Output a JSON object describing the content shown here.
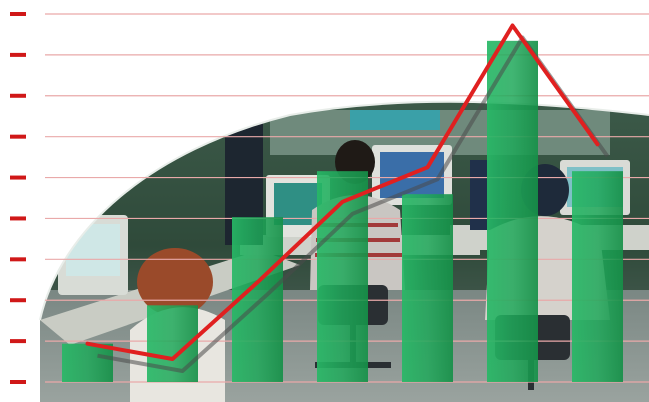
{
  "image": {
    "subject": "office-workers-at-computers-with-growth-chart-overlay",
    "colors": {
      "background": "#ffffff",
      "tick_mark": "#d01818",
      "gridline": "#e9a9a9",
      "bar_fill": "#1fa85a",
      "trend_line": "#e02020",
      "trend_shadow": "#4a4a4a",
      "photo_tone": "#2f4a3a"
    }
  },
  "chart_data": {
    "type": "bar",
    "categories": [
      "",
      "",
      "",
      "",
      "",
      "",
      ""
    ],
    "values": [
      1.0,
      2.0,
      4.3,
      5.5,
      4.9,
      8.9,
      5.5
    ],
    "line_values": [
      1.0,
      0.6,
      2.6,
      4.7,
      5.6,
      9.3,
      6.2
    ],
    "ylim": [
      0,
      9.6
    ],
    "grid": true,
    "tick_count": 10,
    "legend": "none",
    "title": "",
    "xlabel": "",
    "ylabel": ""
  }
}
